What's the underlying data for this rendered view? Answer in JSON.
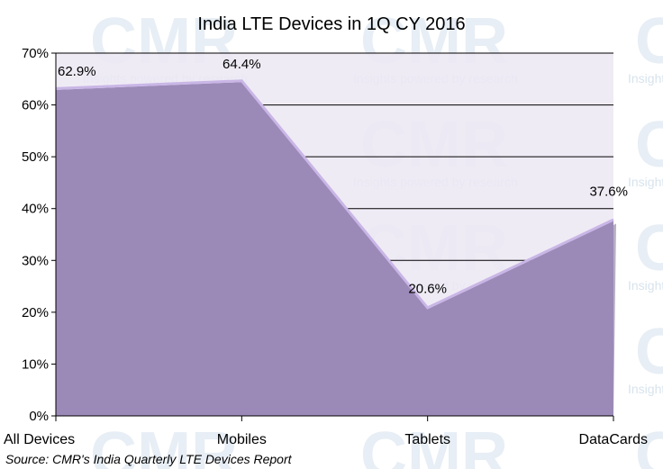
{
  "chart_data": {
    "type": "area",
    "title": "India LTE Devices in 1Q CY 2016",
    "categories": [
      "All Devices",
      "Mobiles",
      "Tablets",
      "DataCards"
    ],
    "values": [
      62.9,
      64.4,
      20.6,
      37.6
    ],
    "data_labels": [
      "62.9%",
      "64.4%",
      "20.6%",
      "37.6%"
    ],
    "y_ticks": [
      "0%",
      "10%",
      "20%",
      "30%",
      "40%",
      "50%",
      "60%",
      "70%"
    ],
    "ylim": [
      0,
      70
    ],
    "grid": true,
    "legend": "none",
    "colors": {
      "area_fill": "#9b8ab8",
      "area_edge": "#c9b6e6",
      "plot_bg": "#ece7f3",
      "grid": "#000000"
    }
  },
  "source": "Source: CMR's India Quarterly LTE Devices Report",
  "watermark": {
    "logo_text": "CMR",
    "tagline": "Insights powered by research"
  }
}
